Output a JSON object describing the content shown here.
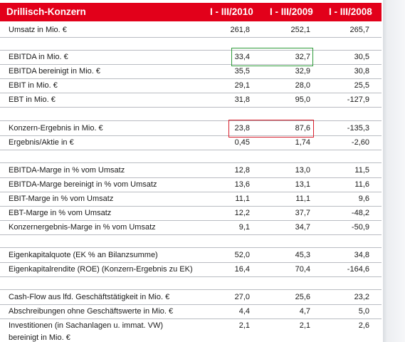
{
  "header": {
    "title": "Drillisch-Konzern",
    "col1": "I - III/2010",
    "col2": "I - III/2009",
    "col3": "I - III/2008"
  },
  "rows": [
    {
      "label": "Umsatz in Mio. €",
      "v": [
        "261,8",
        "252,1",
        "265,7"
      ]
    },
    {
      "label": "EBITDA in Mio. €",
      "v": [
        "33,4",
        "32,7",
        "30,5"
      ]
    },
    {
      "label": "EBITDA bereinigt in Mio. €",
      "v": [
        "35,5",
        "32,9",
        "30,8"
      ]
    },
    {
      "label": "EBIT in Mio. €",
      "v": [
        "29,1",
        "28,0",
        "25,5"
      ]
    },
    {
      "label": "EBT in Mio. €",
      "v": [
        "31,8",
        "95,0",
        "-127,9"
      ]
    },
    {
      "label": "Konzern-Ergebnis in Mio. €",
      "v": [
        "23,8",
        "87,6",
        "-135,3"
      ]
    },
    {
      "label": "Ergebnis/Aktie in €",
      "v": [
        "0,45",
        "1,74",
        "-2,60"
      ]
    },
    {
      "label": "EBITDA-Marge in % vom Umsatz",
      "v": [
        "12,8",
        "13,0",
        "11,5"
      ]
    },
    {
      "label": "EBITDA-Marge bereinigt in % vom Umsatz",
      "v": [
        "13,6",
        "13,1",
        "11,6"
      ]
    },
    {
      "label": "EBIT-Marge in % vom Umsatz",
      "v": [
        "11,1",
        "11,1",
        "9,6"
      ]
    },
    {
      "label": "EBT-Marge in % vom Umsatz",
      "v": [
        "12,2",
        "37,7",
        "-48,2"
      ]
    },
    {
      "label": "Konzernergebnis-Marge in % vom Umsatz",
      "v": [
        "9,1",
        "34,7",
        "-50,9"
      ]
    },
    {
      "label": "Eigenkapitalquote (EK % an Bilanzsumme)",
      "v": [
        "52,0",
        "45,3",
        "34,8"
      ]
    },
    {
      "label": "Eigenkapitalrendite (ROE) (Konzern-Ergebnis zu EK)",
      "v": [
        "16,4",
        "70,4",
        "-164,6"
      ]
    },
    {
      "label": "Cash-Flow aus lfd. Geschäftstätigkeit in Mio. €",
      "v": [
        "27,0",
        "25,6",
        "23,2"
      ]
    },
    {
      "label": "Abschreibungen ohne Geschäftswerte in Mio. €",
      "v": [
        "4,4",
        "4,7",
        "5,0"
      ]
    },
    {
      "label": "Investitionen (in Sachanlagen u. immat. VW)",
      "label2": "bereinigt in Mio. €",
      "v": [
        "2,1",
        "2,1",
        "2,6"
      ]
    }
  ],
  "highlight_colors": {
    "ebitda": "#2e9b3a",
    "konzern_ergebnis": "#d81e2c"
  }
}
